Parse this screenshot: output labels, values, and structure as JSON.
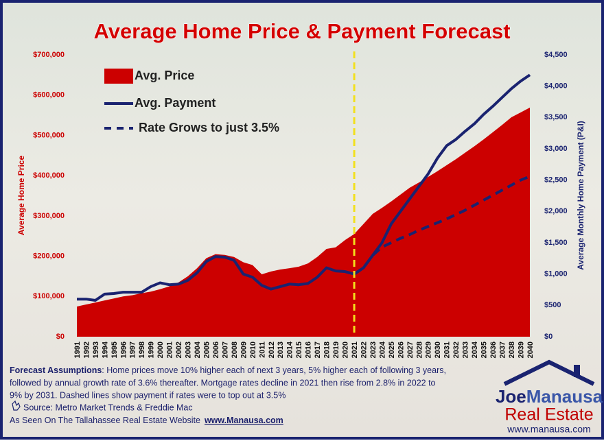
{
  "chart_data": {
    "type": "area-line",
    "title": "Average Home Price & Payment Forecast",
    "y_label": "Average Home Price",
    "y2_label": "Average Monthly Home Payment (P&I)",
    "categories": [
      "1991",
      "1992",
      "1993",
      "1994",
      "1995",
      "1996",
      "1997",
      "1998",
      "1999",
      "2000",
      "2001",
      "2002",
      "2003",
      "2004",
      "2005",
      "2006",
      "2007",
      "2008",
      "2009",
      "2010",
      "2011",
      "2012",
      "2013",
      "2014",
      "2015",
      "2016",
      "2017",
      "2018",
      "2019",
      "2020",
      "2021",
      "2022",
      "2023",
      "2024",
      "2025",
      "2026",
      "2027",
      "2028",
      "2029",
      "2030",
      "2031",
      "2032",
      "2033",
      "2034",
      "2035",
      "2036",
      "2037",
      "2038",
      "2039",
      "2040"
    ],
    "series": [
      {
        "name": "Avg. Price",
        "color": "#cc0000",
        "kind": "area",
        "axis": "y",
        "values": [
          75000,
          80000,
          85000,
          90000,
          95000,
          100000,
          103000,
          108000,
          112000,
          118000,
          125000,
          135000,
          150000,
          170000,
          195000,
          205000,
          203000,
          198000,
          185000,
          178000,
          155000,
          162000,
          167000,
          170000,
          174000,
          182000,
          198000,
          218000,
          222000,
          240000,
          255000,
          280000,
          305000,
          320000,
          336000,
          353000,
          370000,
          383000,
          397000,
          411000,
          426000,
          441000,
          457000,
          473000,
          490000,
          508000,
          526000,
          545000,
          557000,
          569000
        ]
      },
      {
        "name": "Avg. Payment",
        "color": "#1a2370",
        "kind": "line",
        "axis": "y2",
        "values": [
          600,
          600,
          580,
          680,
          690,
          710,
          710,
          710,
          800,
          860,
          830,
          840,
          900,
          1020,
          1200,
          1280,
          1270,
          1220,
          1000,
          950,
          820,
          760,
          800,
          840,
          830,
          850,
          950,
          1100,
          1050,
          1040,
          1000,
          1100,
          1300,
          1500,
          1800,
          2000,
          2200,
          2400,
          2600,
          2850,
          3050,
          3150,
          3280,
          3400,
          3550,
          3680,
          3820,
          3960,
          4080,
          4180
        ]
      },
      {
        "name": "Rate Grows to just 3.5%",
        "color": "#1a2370",
        "kind": "dashed",
        "axis": "y2",
        "values": [
          null,
          null,
          null,
          null,
          null,
          null,
          null,
          null,
          null,
          null,
          null,
          null,
          null,
          null,
          null,
          null,
          null,
          null,
          null,
          null,
          null,
          null,
          null,
          null,
          null,
          null,
          null,
          null,
          null,
          null,
          1000,
          1100,
          1300,
          1430,
          1500,
          1570,
          1630,
          1700,
          1760,
          1820,
          1880,
          1950,
          2020,
          2100,
          2180,
          2260,
          2340,
          2420,
          2500,
          2560
        ]
      }
    ],
    "reference_line": {
      "x": "2021",
      "color": "#f2e01c"
    },
    "ylim": [
      0,
      700000
    ],
    "yticks": [
      {
        "value": 0,
        "label": "$0"
      },
      {
        "value": 100000,
        "label": "$100,000"
      },
      {
        "value": 200000,
        "label": "$200,000"
      },
      {
        "value": 300000,
        "label": "$300,000"
      },
      {
        "value": 400000,
        "label": "$400,000"
      },
      {
        "value": 500000,
        "label": "$500,000"
      },
      {
        "value": 600000,
        "label": "$600,000"
      },
      {
        "value": 700000,
        "label": "$700,000"
      }
    ],
    "y2lim": [
      0,
      4500
    ],
    "y2ticks": [
      {
        "value": 0,
        "label": "$0"
      },
      {
        "value": 500,
        "label": "$500"
      },
      {
        "value": 1000,
        "label": "$1,000"
      },
      {
        "value": 1500,
        "label": "$1,500"
      },
      {
        "value": 2000,
        "label": "$2,000"
      },
      {
        "value": 2500,
        "label": "$2,500"
      },
      {
        "value": 3000,
        "label": "$3,000"
      },
      {
        "value": 3500,
        "label": "$3,500"
      },
      {
        "value": 4000,
        "label": "$4,000"
      },
      {
        "value": 4500,
        "label": "$4,500"
      }
    ]
  },
  "footer": {
    "assumptions_label": "Forecast Assumptions",
    "assumptions_lines": [
      ": Home prices move 10% higher each of next 3 years, 5% higher each of following 3 years,",
      "followed by annual growth rate of 3.6% thereafter. Mortgage rates decline in 2021 then rise from 2.8% in 2022 to",
      "9% by 2031. Dashed lines show payment if rates were to top out at 3.5%"
    ],
    "source": "Source:  Metro Market Trends  & Freddie Mac",
    "seen_on": "As Seen On The Tallahassee Real Estate Website",
    "website": "www.Manausa.com"
  },
  "logo": {
    "name_first": "Joe",
    "name_last": "Manausa",
    "subtitle": "Real Estate",
    "url": "www.manausa.com"
  }
}
